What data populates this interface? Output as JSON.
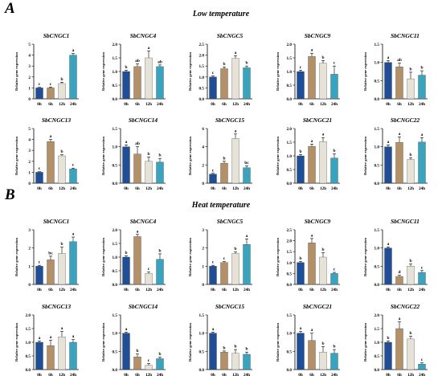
{
  "sections": [
    {
      "letter": "A",
      "title": "Low temperature"
    },
    {
      "letter": "B",
      "title": "Heat  temperature"
    }
  ],
  "ylabel": "Relative gene expression",
  "xcategories": [
    "0h",
    "6h",
    "12h",
    "24h"
  ],
  "colors": [
    "#1f4e96",
    "#b39068",
    "#e6e2d8",
    "#3aa3bd"
  ],
  "chart_data": [
    {
      "type": "bar",
      "title": "SbCNGC1",
      "section": "Low temperature",
      "ylim": [
        0,
        5
      ],
      "yticks": [
        "0",
        "1",
        "2",
        "3",
        "4",
        "5"
      ],
      "ytick_values": [
        0,
        1,
        2,
        3,
        4,
        5
      ],
      "values": [
        1.0,
        1.0,
        1.4,
        4.0
      ],
      "errors": [
        0.05,
        0.08,
        0.12,
        0.15
      ],
      "letters": [
        "c",
        "c",
        "b",
        "a"
      ]
    },
    {
      "type": "bar",
      "title": "SbCNGC4",
      "section": "Low temperature",
      "ylim": [
        0,
        2.0
      ],
      "yticks": [
        "0.0",
        "0.5",
        "1.0",
        "1.5",
        "2.0"
      ],
      "ytick_values": [
        0,
        0.5,
        1,
        1.5,
        2
      ],
      "values": [
        1.0,
        1.18,
        1.5,
        1.18
      ],
      "errors": [
        0.05,
        0.1,
        0.25,
        0.06
      ],
      "letters": [
        "b",
        "ab",
        "a",
        "ab"
      ]
    },
    {
      "type": "bar",
      "title": "SbCNGC5",
      "section": "Low temperature",
      "ylim": [
        0,
        2.5
      ],
      "yticks": [
        "0.0",
        "0.5",
        "1.0",
        "1.5",
        "2.0",
        "2.5"
      ],
      "ytick_values": [
        0,
        0.5,
        1,
        1.5,
        2,
        2.5
      ],
      "values": [
        1.0,
        1.38,
        1.85,
        1.42
      ],
      "errors": [
        0.05,
        0.08,
        0.12,
        0.08
      ],
      "letters": [
        "c",
        "b",
        "a",
        "b"
      ]
    },
    {
      "type": "bar",
      "title": "SbCNGC9",
      "section": "Low temperature",
      "ylim": [
        0,
        2.0
      ],
      "yticks": [
        "0.0",
        "0.5",
        "1.0",
        "1.5",
        "2.0"
      ],
      "ytick_values": [
        0,
        0.5,
        1,
        1.5,
        2
      ],
      "values": [
        1.0,
        1.55,
        1.3,
        0.9
      ],
      "errors": [
        0.05,
        0.12,
        0.1,
        0.3
      ],
      "letters": [
        "c",
        "a",
        "b",
        "c"
      ]
    },
    {
      "type": "bar",
      "title": "SbCNGC11",
      "section": "Low temperature",
      "ylim": [
        0,
        1.5
      ],
      "yticks": [
        "0.0",
        "0.5",
        "1.0",
        "1.5"
      ],
      "ytick_values": [
        0,
        0.5,
        1,
        1.5
      ],
      "values": [
        1.0,
        0.88,
        0.55,
        0.65
      ],
      "errors": [
        0.05,
        0.1,
        0.18,
        0.12
      ],
      "letters": [
        "a",
        "ab",
        "b",
        "b"
      ]
    },
    {
      "type": "bar",
      "title": "SbCNGC13",
      "section": "Low temperature",
      "ylim": [
        0,
        5
      ],
      "yticks": [
        "0",
        "1",
        "2",
        "3",
        "4",
        "5"
      ],
      "ytick_values": [
        0,
        1,
        2,
        3,
        4,
        5
      ],
      "values": [
        1.0,
        3.8,
        2.5,
        1.3
      ],
      "errors": [
        0.05,
        0.2,
        0.1,
        0.08
      ],
      "letters": [
        "c",
        "a",
        "b",
        "c"
      ]
    },
    {
      "type": "bar",
      "title": "SbCNGC14",
      "section": "Low temperature",
      "ylim": [
        0,
        1.5
      ],
      "yticks": [
        "0.0",
        "0.5",
        "1.0",
        "1.5"
      ],
      "ytick_values": [
        0,
        0.5,
        1,
        1.5
      ],
      "values": [
        1.0,
        0.8,
        0.6,
        0.58
      ],
      "errors": [
        0.05,
        0.2,
        0.12,
        0.1
      ],
      "letters": [
        "a",
        "ab",
        "b",
        "b"
      ]
    },
    {
      "type": "bar",
      "title": "SbCNGC15",
      "section": "Low temperature",
      "ylim": [
        0,
        6
      ],
      "yticks": [
        "0",
        "2",
        "4",
        "6"
      ],
      "ytick_values": [
        0,
        2,
        4,
        6
      ],
      "values": [
        1.0,
        2.2,
        4.9,
        1.7
      ],
      "errors": [
        0.08,
        0.2,
        0.5,
        0.2
      ],
      "letters": [
        "c",
        "b",
        "a",
        "bc"
      ]
    },
    {
      "type": "bar",
      "title": "SbCNGC21",
      "section": "Low temperature",
      "ylim": [
        0,
        2.0
      ],
      "yticks": [
        "0.0",
        "0.5",
        "1.0",
        "1.5",
        "2.0"
      ],
      "ytick_values": [
        0,
        0.5,
        1,
        1.5,
        2
      ],
      "values": [
        1.0,
        1.35,
        1.52,
        0.92
      ],
      "errors": [
        0.05,
        0.08,
        0.15,
        0.15
      ],
      "letters": [
        "b",
        "a",
        "a",
        "b"
      ]
    },
    {
      "type": "bar",
      "title": "SbCNGC22",
      "section": "Low temperature",
      "ylim": [
        0,
        1.5
      ],
      "yticks": [
        "0.0",
        "0.5",
        "1.0",
        "1.5"
      ],
      "ytick_values": [
        0,
        0.5,
        1,
        1.5
      ],
      "values": [
        1.0,
        1.12,
        0.65,
        1.13
      ],
      "errors": [
        0.05,
        0.15,
        0.05,
        0.12
      ],
      "letters": [
        "a",
        "a",
        "b",
        "a"
      ]
    },
    {
      "type": "bar",
      "title": "SbCNGC1",
      "section": "Heat  temperature",
      "ylim": [
        0,
        3
      ],
      "yticks": [
        "0",
        "1",
        "2",
        "3"
      ],
      "ytick_values": [
        0,
        1,
        2,
        3
      ],
      "values": [
        1.0,
        1.35,
        1.7,
        2.35
      ],
      "errors": [
        0.05,
        0.2,
        0.35,
        0.25
      ],
      "letters": [
        "c",
        "bc",
        "b",
        "a"
      ]
    },
    {
      "type": "bar",
      "title": "SbCNGC4",
      "section": "Heat  temperature",
      "ylim": [
        0,
        2.0
      ],
      "yticks": [
        "0.0",
        "0.5",
        "1.0",
        "1.5",
        "2.0"
      ],
      "ytick_values": [
        0,
        0.5,
        1,
        1.5,
        2
      ],
      "values": [
        1.0,
        1.75,
        0.4,
        0.92
      ],
      "errors": [
        0.05,
        0.08,
        0.05,
        0.2
      ],
      "letters": [
        "b",
        "a",
        "c",
        "b"
      ]
    },
    {
      "type": "bar",
      "title": "SbCNGC5",
      "section": "Heat  temperature",
      "ylim": [
        0,
        3
      ],
      "yticks": [
        "0",
        "1",
        "2",
        "3"
      ],
      "ytick_values": [
        0,
        1,
        2,
        3
      ],
      "values": [
        1.0,
        1.2,
        1.7,
        2.2
      ],
      "errors": [
        0.05,
        0.05,
        0.08,
        0.3
      ],
      "letters": [
        "c",
        "c",
        "b",
        "a"
      ]
    },
    {
      "type": "bar",
      "title": "SbCNGC9",
      "section": "Heat  temperature",
      "ylim": [
        0,
        2.5
      ],
      "yticks": [
        "0.0",
        "0.5",
        "1.0",
        "1.5",
        "2.0",
        "2.5"
      ],
      "ytick_values": [
        0,
        0.5,
        1,
        1.5,
        2,
        2.5
      ],
      "values": [
        1.0,
        1.9,
        1.25,
        0.5
      ],
      "errors": [
        0.05,
        0.2,
        0.2,
        0.05
      ],
      "letters": [
        "b",
        "a",
        "b",
        "c"
      ]
    },
    {
      "type": "bar",
      "title": "SbCNGC11",
      "section": "Heat  temperature",
      "ylim": [
        0,
        1.5
      ],
      "yticks": [
        "0.0",
        "0.5",
        "1.0",
        "1.5"
      ],
      "ytick_values": [
        0,
        0.5,
        1,
        1.5
      ],
      "values": [
        1.0,
        0.22,
        0.5,
        0.33
      ],
      "errors": [
        0.03,
        0.03,
        0.06,
        0.05
      ],
      "letters": [
        "a",
        "d",
        "b",
        "c"
      ]
    },
    {
      "type": "bar",
      "title": "SbCNGC13",
      "section": "Heat  temperature",
      "ylim": [
        0,
        2.0
      ],
      "yticks": [
        "0.0",
        "0.5",
        "1.0",
        "1.5",
        "2.0"
      ],
      "ytick_values": [
        0,
        0.5,
        1,
        1.5,
        2
      ],
      "values": [
        1.0,
        0.88,
        1.2,
        1.0
      ],
      "errors": [
        0.05,
        0.2,
        0.2,
        0.1
      ],
      "letters": [
        "a",
        "a",
        "a",
        "a"
      ]
    },
    {
      "type": "bar",
      "title": "SbCNGC14",
      "section": "Heat  temperature",
      "ylim": [
        0,
        1.5
      ],
      "yticks": [
        "0.0",
        "0.5",
        "1.0",
        "1.5"
      ],
      "ytick_values": [
        0,
        0.5,
        1,
        1.5
      ],
      "values": [
        1.0,
        0.35,
        0.12,
        0.3
      ],
      "errors": [
        0.03,
        0.08,
        0.05,
        0.04
      ],
      "letters": [
        "a",
        "b",
        "c",
        "b"
      ]
    },
    {
      "type": "bar",
      "title": "SbCNGC15",
      "section": "Heat  temperature",
      "ylim": [
        0,
        1.5
      ],
      "yticks": [
        "0.0",
        "0.5",
        "1.0",
        "1.5"
      ],
      "ytick_values": [
        0,
        0.5,
        1,
        1.5
      ],
      "values": [
        1.0,
        0.48,
        0.45,
        0.42
      ],
      "errors": [
        0.03,
        0.03,
        0.1,
        0.06
      ],
      "letters": [
        "a",
        "b",
        "b",
        "b"
      ]
    },
    {
      "type": "bar",
      "title": "SbCNGC21",
      "section": "Heat  temperature",
      "ylim": [
        0,
        1.5
      ],
      "yticks": [
        "0.0",
        "0.5",
        "1.0",
        "1.5"
      ],
      "ytick_values": [
        0,
        0.5,
        1,
        1.5
      ],
      "values": [
        1.0,
        0.8,
        0.48,
        0.45
      ],
      "errors": [
        0.05,
        0.2,
        0.15,
        0.1
      ],
      "letters": [
        "a",
        "a",
        "b",
        "b"
      ]
    },
    {
      "type": "bar",
      "title": "SbCNGC22",
      "section": "Heat  temperature",
      "ylim": [
        0,
        2.0
      ],
      "yticks": [
        "0.0",
        "0.5",
        "1.0",
        "1.5",
        "2.0"
      ],
      "ytick_values": [
        0,
        0.5,
        1,
        1.5,
        2
      ],
      "values": [
        1.0,
        1.5,
        1.12,
        0.2
      ],
      "errors": [
        0.05,
        0.25,
        0.1,
        0.05
      ],
      "letters": [
        "b",
        "a",
        "b",
        "c"
      ]
    }
  ]
}
